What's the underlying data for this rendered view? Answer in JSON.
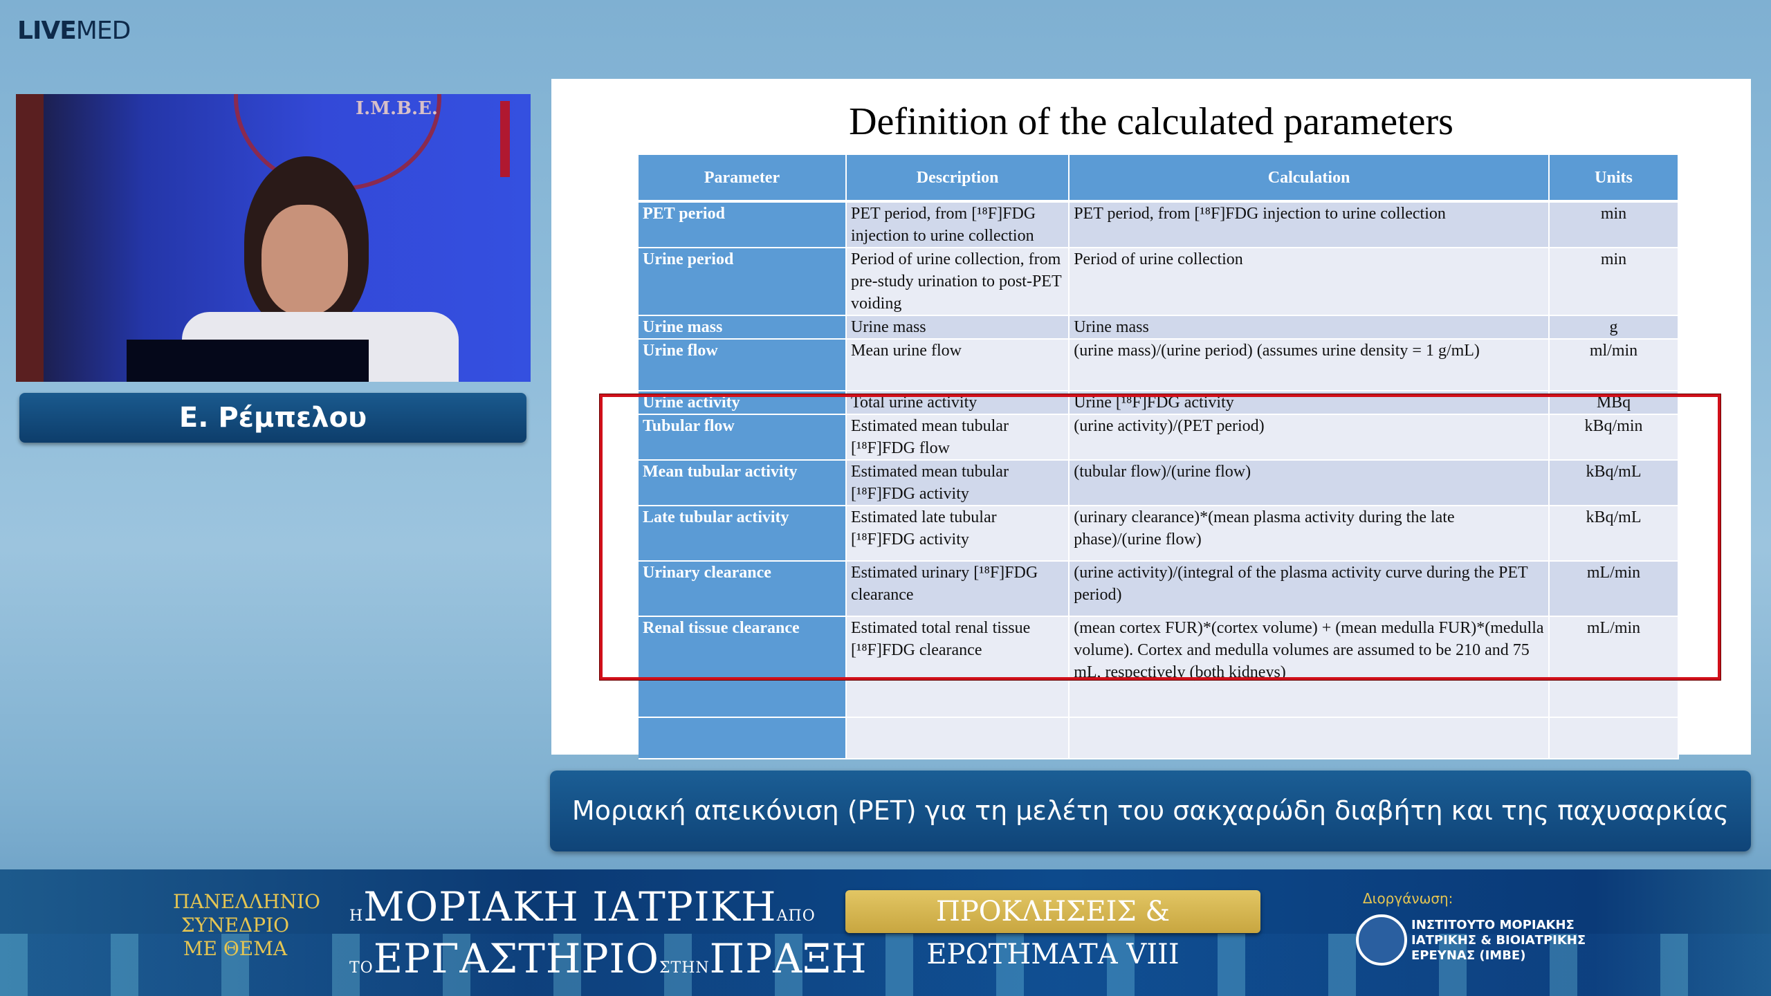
{
  "brand": {
    "live": "LIVE",
    "med": "MED"
  },
  "speaker": {
    "name": "Ε. Ρέμπελου",
    "backdrop_text": "I.M.B.E."
  },
  "slide": {
    "title": "Definition of the calculated  parameters",
    "headers": [
      "Parameter",
      "Description",
      "Calculation",
      "Units"
    ],
    "rows": [
      {
        "param": "PET period",
        "desc": "PET period, from [¹⁸F]FDG  injection to urine collection",
        "calc": "PET period, from [¹⁸F]FDG injection to urine collection",
        "units": "min"
      },
      {
        "param": "Urine period",
        "desc": "Period of urine collection, from pre-study urination to post-PET voiding",
        "calc": "Period of urine collection",
        "units": "min"
      },
      {
        "param": "Urine mass",
        "desc": "Urine mass",
        "calc": "Urine mass",
        "units": "g"
      },
      {
        "param": "Urine flow",
        "desc": "Mean urine flow",
        "calc": "(urine mass)/(urine period) (assumes urine density = 1 g/mL)",
        "units": "ml/min"
      },
      {
        "param": "Urine activity",
        "desc": "Total urine activity",
        "calc": "Urine [¹⁸F]FDG activity",
        "units": "MBq"
      },
      {
        "param": "Tubular flow",
        "desc": "Estimated mean tubular [¹⁸F]FDG flow",
        "calc": "(urine activity)/(PET period)",
        "units": "kBq/min"
      },
      {
        "param": "Mean tubular activity",
        "desc": "Estimated mean tubular [¹⁸F]FDG  activity",
        "calc": "(tubular flow)/(urine flow)",
        "units": "kBq/mL"
      },
      {
        "param": "Late tubular activity",
        "desc": "Estimated late tubular [¹⁸F]FDG  activity",
        "calc": "(urinary clearance)*(mean plasma activity during the late phase)/(urine flow)",
        "units": "kBq/mL"
      },
      {
        "param": "Urinary clearance",
        "desc": "Estimated urinary [¹⁸F]FDG  clearance",
        "calc": "(urine activity)/(integral of the plasma activity curve during the PET period)",
        "units": "mL/min"
      },
      {
        "param": "Renal tissue clearance",
        "desc": "Estimated total renal tissue [¹⁸F]FDG clearance",
        "calc": "(mean cortex FUR)*(cortex volume) + (mean medulla FUR)*(medulla volume). Cortex and medulla volumes are assumed to be 210 and 75 mL, respectively (both kidneys)",
        "units": "mL/min"
      }
    ],
    "highlight_color": "#d0101a"
  },
  "subtitle": "Μοριακή απεικόνιση (PET) για τη μελέτη του σακχαρώδη διαβήτη και της παχυσαρκίας",
  "banner": {
    "conf_label": [
      "ΠΑΝΕΛΛΗΝΙΟ",
      "ΣΥΝΕΔΡΙΟ",
      "ΜΕ ΘΕΜΑ"
    ],
    "line1_pre": "Η",
    "line1": "ΜΟΡΙΑΚΗ ΙΑΤΡΙΚΗ",
    "line1_post": "ΑΠΟ",
    "line2_pre": "ΤΟ",
    "line2": "ΕΡΓΑΣΤΗΡΙΟ",
    "line2_mid": "ΣΤΗΝ",
    "line2_end": "ΠΡΑΞΗ",
    "badge": "ΠΡΟΚΛΗΣΕΙΣ & ΕΡΩΤΗΜΑΤΑ VIII",
    "org_label": "Διοργάνωση:",
    "org_name": [
      "ΙΝΣΤΙΤΟΥΤΟ ΜΟΡΙΑΚΗΣ",
      "ΙΑΤΡΙΚΗΣ & ΒΙΟΙΑΤΡΙΚΗΣ",
      "ΕΡΕΥΝΑΣ (IMBE)"
    ]
  }
}
